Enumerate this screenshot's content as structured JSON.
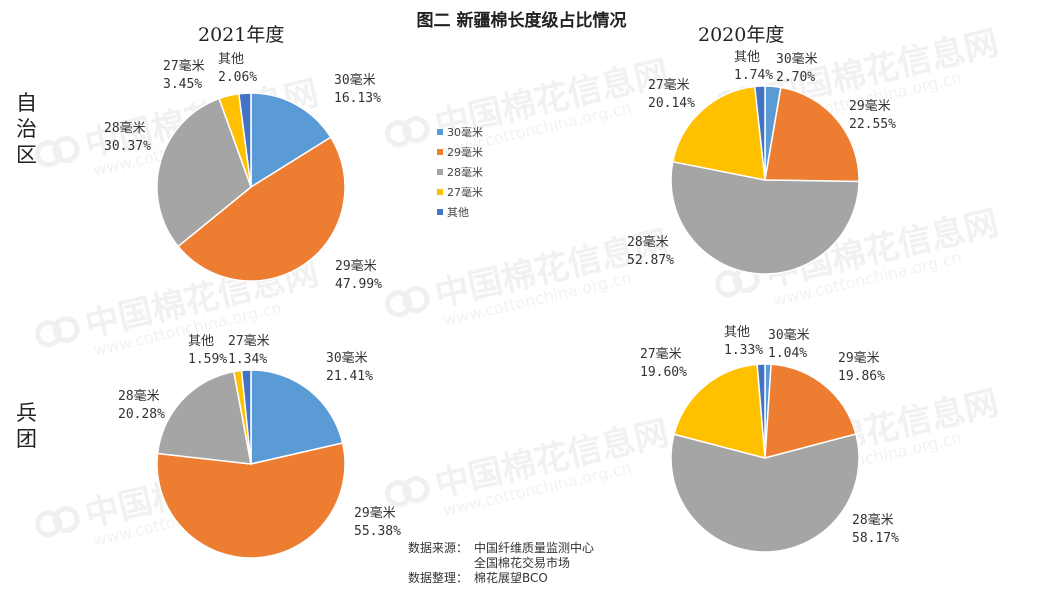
{
  "title": "图二  新疆棉长度级占比情况",
  "row_labels": [
    "自治区",
    "兵团"
  ],
  "col_labels": [
    "2021年度",
    "2020年度"
  ],
  "legend": [
    {
      "label": "30毫米",
      "color": "#5B9BD5"
    },
    {
      "label": "29毫米",
      "color": "#ED7D31"
    },
    {
      "label": "28毫米",
      "color": "#A5A5A5"
    },
    {
      "label": "27毫米",
      "color": "#FFC000"
    },
    {
      "label": "其他",
      "color": "#4472C4"
    }
  ],
  "source": {
    "label1": "数据来源：",
    "value1a": "中国纤维质量监测中心",
    "value1b": "全国棉花交易市场",
    "label2": "数据整理：",
    "value2": "棉花展望BCO"
  },
  "watermark": {
    "cn": "中国棉花信息网",
    "url": "www.cottonchina.org.cn"
  },
  "chart_data": [
    {
      "type": "pie",
      "title": "2021年度",
      "row": "自治区",
      "categories": [
        "30毫米",
        "29毫米",
        "28毫米",
        "27毫米",
        "其他"
      ],
      "values": [
        16.13,
        47.99,
        30.37,
        3.45,
        2.06
      ],
      "labels": [
        "16.13%",
        "47.99%",
        "30.37%",
        "3.45%",
        "2.06%"
      ]
    },
    {
      "type": "pie",
      "title": "2020年度",
      "row": "自治区",
      "categories": [
        "30毫米",
        "29毫米",
        "28毫米",
        "27毫米",
        "其他"
      ],
      "values": [
        2.7,
        22.55,
        52.87,
        20.14,
        1.74
      ],
      "labels": [
        "2.70%",
        "22.55%",
        "52.87%",
        "20.14%",
        "1.74%"
      ]
    },
    {
      "type": "pie",
      "title": "2021年度",
      "row": "兵团",
      "categories": [
        "30毫米",
        "29毫米",
        "28毫米",
        "27毫米",
        "其他"
      ],
      "values": [
        21.41,
        55.38,
        20.28,
        1.34,
        1.59
      ],
      "labels": [
        "21.41%",
        "55.38%",
        "20.28%",
        "1.34%",
        "1.59%"
      ]
    },
    {
      "type": "pie",
      "title": "2020年度",
      "row": "兵团",
      "categories": [
        "30毫米",
        "29毫米",
        "28毫米",
        "27毫米",
        "其他"
      ],
      "values": [
        1.04,
        19.86,
        58.17,
        19.6,
        1.33
      ],
      "labels": [
        "1.04%",
        "19.86%",
        "58.17%",
        "19.60%",
        "1.33%"
      ]
    }
  ]
}
